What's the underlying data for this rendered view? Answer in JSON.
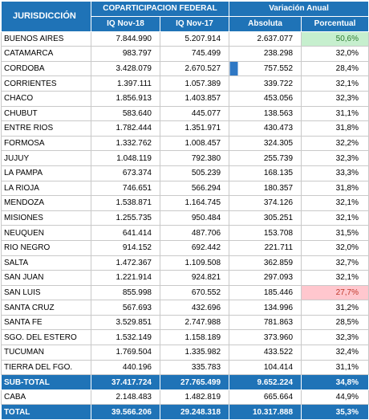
{
  "headers": {
    "jurisdiction": "JURISDICCIÓN",
    "group_left": "COPARTICIPACION FEDERAL",
    "group_right": "Variación Anual",
    "col_nov18": "IQ Nov-18",
    "col_nov17": "IQ Nov-17",
    "col_abs": "Absoluta",
    "col_pct": "Porcentual"
  },
  "rows": [
    {
      "name": "BUENOS AIRES",
      "nov18": "7.844.990",
      "nov17": "5.207.914",
      "abs": "2.637.077",
      "pct": "50,6%"
    },
    {
      "name": "CATAMARCA",
      "nov18": "983.797",
      "nov17": "745.499",
      "abs": "238.298",
      "pct": "32,0%"
    },
    {
      "name": "CORDOBA",
      "nov18": "3.428.079",
      "nov17": "2.670.527",
      "abs": "757.552",
      "pct": "28,4%"
    },
    {
      "name": "CORRIENTES",
      "nov18": "1.397.111",
      "nov17": "1.057.389",
      "abs": "339.722",
      "pct": "32,1%"
    },
    {
      "name": "CHACO",
      "nov18": "1.856.913",
      "nov17": "1.403.857",
      "abs": "453.056",
      "pct": "32,3%"
    },
    {
      "name": "CHUBUT",
      "nov18": "583.640",
      "nov17": "445.077",
      "abs": "138.563",
      "pct": "31,1%"
    },
    {
      "name": "ENTRE RIOS",
      "nov18": "1.782.444",
      "nov17": "1.351.971",
      "abs": "430.473",
      "pct": "31,8%"
    },
    {
      "name": "FORMOSA",
      "nov18": "1.332.762",
      "nov17": "1.008.457",
      "abs": "324.305",
      "pct": "32,2%"
    },
    {
      "name": "JUJUY",
      "nov18": "1.048.119",
      "nov17": "792.380",
      "abs": "255.739",
      "pct": "32,3%"
    },
    {
      "name": "LA PAMPA",
      "nov18": "673.374",
      "nov17": "505.239",
      "abs": "168.135",
      "pct": "33,3%"
    },
    {
      "name": "LA RIOJA",
      "nov18": "746.651",
      "nov17": "566.294",
      "abs": "180.357",
      "pct": "31,8%"
    },
    {
      "name": "MENDOZA",
      "nov18": "1.538.871",
      "nov17": "1.164.745",
      "abs": "374.126",
      "pct": "32,1%"
    },
    {
      "name": "MISIONES",
      "nov18": "1.255.735",
      "nov17": "950.484",
      "abs": "305.251",
      "pct": "32,1%"
    },
    {
      "name": "NEUQUEN",
      "nov18": "641.414",
      "nov17": "487.706",
      "abs": "153.708",
      "pct": "31,5%"
    },
    {
      "name": "RIO NEGRO",
      "nov18": "914.152",
      "nov17": "692.442",
      "abs": "221.711",
      "pct": "32,0%"
    },
    {
      "name": "SALTA",
      "nov18": "1.472.367",
      "nov17": "1.109.508",
      "abs": "362.859",
      "pct": "32,7%"
    },
    {
      "name": "SAN JUAN",
      "nov18": "1.221.914",
      "nov17": "924.821",
      "abs": "297.093",
      "pct": "32,1%"
    },
    {
      "name": "SAN LUIS",
      "nov18": "855.998",
      "nov17": "670.552",
      "abs": "185.446",
      "pct": "27,7%"
    },
    {
      "name": "SANTA CRUZ",
      "nov18": "567.693",
      "nov17": "432.696",
      "abs": "134.996",
      "pct": "31,2%"
    },
    {
      "name": "SANTA FE",
      "nov18": "3.529.851",
      "nov17": "2.747.988",
      "abs": "781.863",
      "pct": "28,5%"
    },
    {
      "name": "SGO. DEL ESTERO",
      "nov18": "1.532.149",
      "nov17": "1.158.189",
      "abs": "373.960",
      "pct": "32,3%"
    },
    {
      "name": "TUCUMAN",
      "nov18": "1.769.504",
      "nov17": "1.335.982",
      "abs": "433.522",
      "pct": "32,4%"
    },
    {
      "name": "TIERRA DEL FGO.",
      "nov18": "440.196",
      "nov17": "335.783",
      "abs": "104.414",
      "pct": "31,1%"
    }
  ],
  "subtotal": {
    "name": "SUB-TOTAL",
    "nov18": "37.417.724",
    "nov17": "27.765.499",
    "abs": "9.652.224",
    "pct": "34,8%"
  },
  "caba": {
    "name": "CABA",
    "nov18": "2.148.483",
    "nov17": "1.482.819",
    "abs": "665.664",
    "pct": "44,9%"
  },
  "total": {
    "name": "TOTAL",
    "nov18": "39.566.206",
    "nov17": "29.248.318",
    "abs": "10.317.888",
    "pct": "35,3%"
  },
  "highlight_colors": {
    "max_fill": "#c6efce",
    "min_fill": "#ffc7ce",
    "header": "#1f73b7"
  }
}
